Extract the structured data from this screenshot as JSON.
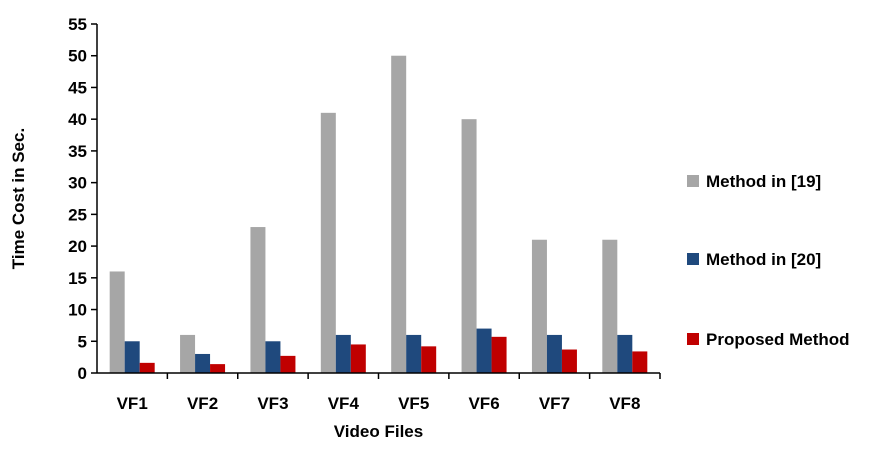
{
  "chart_data": {
    "type": "bar",
    "title": "",
    "xlabel": "Video Files",
    "ylabel": "Time Cost in Sec.",
    "ylim": [
      0,
      55
    ],
    "ytick_step": 5,
    "categories": [
      "VF1",
      "VF2",
      "VF3",
      "VF4",
      "VF5",
      "VF6",
      "VF7",
      "VF8"
    ],
    "series": [
      {
        "name": "Method in [19]",
        "color": "#a6a6a6",
        "values": [
          16,
          6,
          23,
          41,
          50,
          40,
          21,
          21
        ]
      },
      {
        "name": "Method in [20]",
        "color": "#1f497d",
        "values": [
          5,
          3,
          5,
          6,
          6,
          7,
          6,
          6
        ]
      },
      {
        "name": "Proposed Method",
        "color": "#c00000",
        "values": [
          1.6,
          1.4,
          2.7,
          4.5,
          4.2,
          5.7,
          3.7,
          3.4
        ]
      }
    ],
    "legend_position": "right",
    "grid": false
  }
}
